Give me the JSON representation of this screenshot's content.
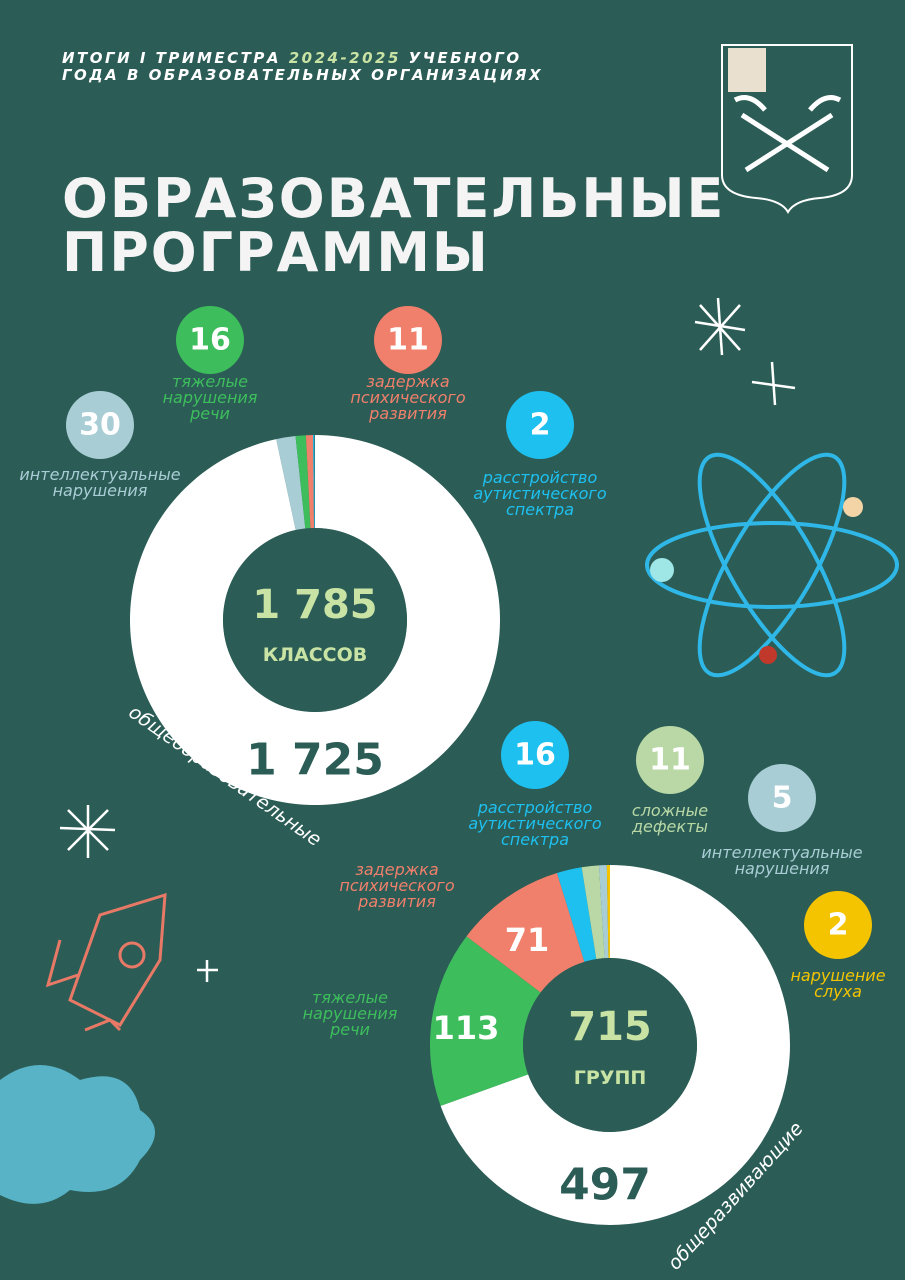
{
  "header": {
    "subtitle_start": "ИТОГИ I ТРИМЕСТРА ",
    "subtitle_years": "2024-2025",
    "subtitle_end": " УЧЕБНОГО ГОДА В ОБРАЗОВАТЕЛЬНЫХ ОРГАНИЗАЦИЯХ",
    "title": "ОБРАЗОВАТЕЛЬНЫЕ ПРОГРАММЫ"
  },
  "chart_data": [
    {
      "type": "donut",
      "total": {
        "value": 1785,
        "label": "1 785"
      },
      "center_label": "КЛАССОВ",
      "categories": [
        "общеобразовательные",
        "интеллектуальные нарушения",
        "тяжелые нарушения речи",
        "задержка психического развития",
        "расстройство аутистического спектра"
      ],
      "values": [
        1725,
        30,
        16,
        11,
        2
      ],
      "value_labels": [
        "1 725",
        "30",
        "16",
        "11",
        "2"
      ],
      "colors": [
        "#ffffff",
        "#a9cdd5",
        "#3dbd5c",
        "#f07f6b",
        "#1ec0f0"
      ]
    },
    {
      "type": "donut",
      "total": 715,
      "center_label": "ГРУПП",
      "categories": [
        "общеразвивающие",
        "тяжелые нарушения речи",
        "задержка психического развития",
        "расстройство аутистического спектра",
        "сложные дефекты",
        "интеллектуальные нарушения",
        "нарушение слуха"
      ],
      "values": [
        497,
        113,
        71,
        16,
        11,
        5,
        2
      ],
      "colors": [
        "#ffffff",
        "#3dbd5c",
        "#f07f6b",
        "#1ec0f0",
        "#b9d8a6",
        "#a9cdd5",
        "#f5c400"
      ]
    }
  ]
}
